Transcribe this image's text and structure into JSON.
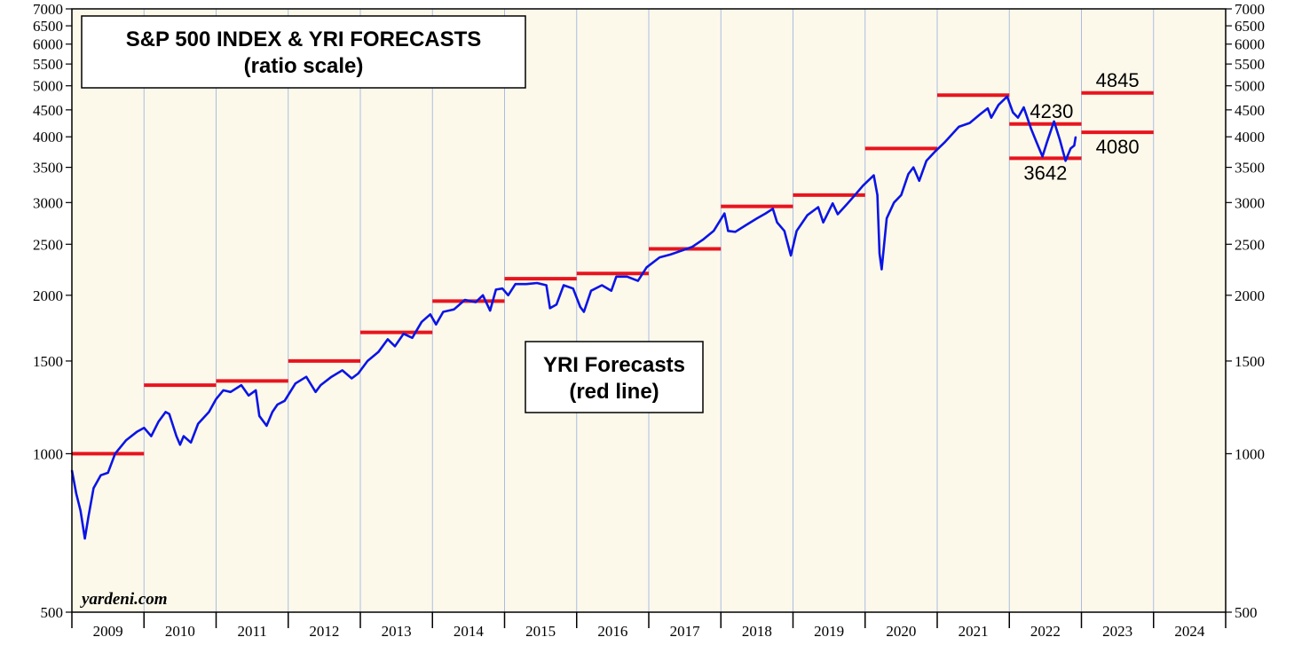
{
  "chart_data": {
    "type": "line",
    "title": "S&P 500 INDEX & YRI FORECASTS",
    "subtitle": "(ratio scale)",
    "scale": "log",
    "ylim": [
      500,
      7000
    ],
    "y_ticks": [
      500,
      1000,
      1500,
      2000,
      2500,
      3000,
      3500,
      4000,
      4500,
      5000,
      5500,
      6000,
      6500,
      7000
    ],
    "x_years": [
      "2009",
      "2010",
      "2011",
      "2012",
      "2013",
      "2014",
      "2015",
      "2016",
      "2017",
      "2018",
      "2019",
      "2020",
      "2021",
      "2022",
      "2023",
      "2024"
    ],
    "xlim": [
      2009,
      2025
    ],
    "grid": "vertical year lines",
    "annotation_box": {
      "line1": "YRI Forecasts",
      "line2": "(red line)"
    },
    "watermark": "yardeni.com",
    "series": [
      {
        "name": "S&P 500 Index",
        "color": "#0a14e6",
        "points": [
          [
            2009.0,
            930
          ],
          [
            2009.06,
            840
          ],
          [
            2009.12,
            780
          ],
          [
            2009.18,
            690
          ],
          [
            2009.23,
            760
          ],
          [
            2009.3,
            860
          ],
          [
            2009.4,
            910
          ],
          [
            2009.5,
            920
          ],
          [
            2009.6,
            1000
          ],
          [
            2009.75,
            1060
          ],
          [
            2009.9,
            1100
          ],
          [
            2010.0,
            1120
          ],
          [
            2010.1,
            1080
          ],
          [
            2010.2,
            1150
          ],
          [
            2010.3,
            1200
          ],
          [
            2010.35,
            1190
          ],
          [
            2010.45,
            1080
          ],
          [
            2010.5,
            1040
          ],
          [
            2010.55,
            1080
          ],
          [
            2010.65,
            1050
          ],
          [
            2010.75,
            1140
          ],
          [
            2010.9,
            1200
          ],
          [
            2011.0,
            1270
          ],
          [
            2011.1,
            1320
          ],
          [
            2011.2,
            1310
          ],
          [
            2011.35,
            1350
          ],
          [
            2011.45,
            1290
          ],
          [
            2011.55,
            1320
          ],
          [
            2011.6,
            1180
          ],
          [
            2011.7,
            1130
          ],
          [
            2011.78,
            1200
          ],
          [
            2011.85,
            1240
          ],
          [
            2011.95,
            1260
          ],
          [
            2012.1,
            1360
          ],
          [
            2012.25,
            1400
          ],
          [
            2012.38,
            1310
          ],
          [
            2012.45,
            1350
          ],
          [
            2012.6,
            1400
          ],
          [
            2012.75,
            1440
          ],
          [
            2012.88,
            1390
          ],
          [
            2012.97,
            1420
          ],
          [
            2013.1,
            1500
          ],
          [
            2013.25,
            1560
          ],
          [
            2013.38,
            1650
          ],
          [
            2013.48,
            1600
          ],
          [
            2013.6,
            1690
          ],
          [
            2013.72,
            1660
          ],
          [
            2013.85,
            1780
          ],
          [
            2013.97,
            1840
          ],
          [
            2014.05,
            1760
          ],
          [
            2014.15,
            1860
          ],
          [
            2014.3,
            1880
          ],
          [
            2014.45,
            1960
          ],
          [
            2014.6,
            1940
          ],
          [
            2014.7,
            2000
          ],
          [
            2014.8,
            1870
          ],
          [
            2014.88,
            2050
          ],
          [
            2014.97,
            2060
          ],
          [
            2015.05,
            2000
          ],
          [
            2015.15,
            2100
          ],
          [
            2015.3,
            2100
          ],
          [
            2015.45,
            2110
          ],
          [
            2015.58,
            2090
          ],
          [
            2015.63,
            1890
          ],
          [
            2015.72,
            1920
          ],
          [
            2015.82,
            2090
          ],
          [
            2015.95,
            2060
          ],
          [
            2016.05,
            1900
          ],
          [
            2016.1,
            1860
          ],
          [
            2016.2,
            2040
          ],
          [
            2016.35,
            2090
          ],
          [
            2016.48,
            2040
          ],
          [
            2016.55,
            2170
          ],
          [
            2016.7,
            2170
          ],
          [
            2016.85,
            2130
          ],
          [
            2016.97,
            2260
          ],
          [
            2017.15,
            2360
          ],
          [
            2017.3,
            2390
          ],
          [
            2017.45,
            2430
          ],
          [
            2017.6,
            2470
          ],
          [
            2017.75,
            2550
          ],
          [
            2017.9,
            2650
          ],
          [
            2018.05,
            2860
          ],
          [
            2018.1,
            2650
          ],
          [
            2018.2,
            2640
          ],
          [
            2018.35,
            2720
          ],
          [
            2018.5,
            2800
          ],
          [
            2018.62,
            2860
          ],
          [
            2018.72,
            2920
          ],
          [
            2018.78,
            2750
          ],
          [
            2018.88,
            2650
          ],
          [
            2018.97,
            2380
          ],
          [
            2019.05,
            2650
          ],
          [
            2019.2,
            2840
          ],
          [
            2019.35,
            2940
          ],
          [
            2019.42,
            2750
          ],
          [
            2019.55,
            2990
          ],
          [
            2019.62,
            2850
          ],
          [
            2019.75,
            2980
          ],
          [
            2019.85,
            3090
          ],
          [
            2019.97,
            3230
          ],
          [
            2020.12,
            3380
          ],
          [
            2020.17,
            3100
          ],
          [
            2020.2,
            2400
          ],
          [
            2020.23,
            2240
          ],
          [
            2020.3,
            2800
          ],
          [
            2020.4,
            3000
          ],
          [
            2020.5,
            3100
          ],
          [
            2020.6,
            3400
          ],
          [
            2020.67,
            3500
          ],
          [
            2020.75,
            3300
          ],
          [
            2020.85,
            3600
          ],
          [
            2020.97,
            3750
          ],
          [
            2021.1,
            3900
          ],
          [
            2021.3,
            4180
          ],
          [
            2021.45,
            4250
          ],
          [
            2021.6,
            4420
          ],
          [
            2021.7,
            4530
          ],
          [
            2021.75,
            4350
          ],
          [
            2021.85,
            4600
          ],
          [
            2021.97,
            4770
          ],
          [
            2022.05,
            4450
          ],
          [
            2022.12,
            4350
          ],
          [
            2022.2,
            4550
          ],
          [
            2022.3,
            4150
          ],
          [
            2022.38,
            3900
          ],
          [
            2022.46,
            3670
          ],
          [
            2022.52,
            3900
          ],
          [
            2022.62,
            4280
          ],
          [
            2022.7,
            3950
          ],
          [
            2022.78,
            3600
          ],
          [
            2022.85,
            3800
          ],
          [
            2022.9,
            3850
          ],
          [
            2022.92,
            4000
          ]
        ]
      }
    ],
    "forecasts": [
      {
        "year": "2009",
        "value": 1000
      },
      {
        "year": "2010",
        "value": 1350
      },
      {
        "year": "2011",
        "value": 1375
      },
      {
        "year": "2012",
        "value": 1500
      },
      {
        "year": "2013",
        "value": 1700
      },
      {
        "year": "2014",
        "value": 1950
      },
      {
        "year": "2015",
        "value": 2150
      },
      {
        "year": "2016",
        "value": 2200
      },
      {
        "year": "2017",
        "value": 2450
      },
      {
        "year": "2018",
        "value": 2950
      },
      {
        "year": "2019",
        "value": 3100
      },
      {
        "year": "2020",
        "value": 3800
      },
      {
        "year": "2021",
        "value": 4800
      },
      {
        "year": "2022",
        "value": 4230,
        "label": "4230"
      },
      {
        "year": "2022",
        "value": 3642,
        "label": "3642"
      },
      {
        "year": "2023",
        "value": 4845,
        "label": "4845"
      },
      {
        "year": "2023",
        "value": 4080,
        "label": "4080"
      }
    ],
    "forecast_color": "#e8141e",
    "frame_color": "#000000",
    "background_color": "#fdf9ea",
    "grid_color": "#a9bde0"
  }
}
